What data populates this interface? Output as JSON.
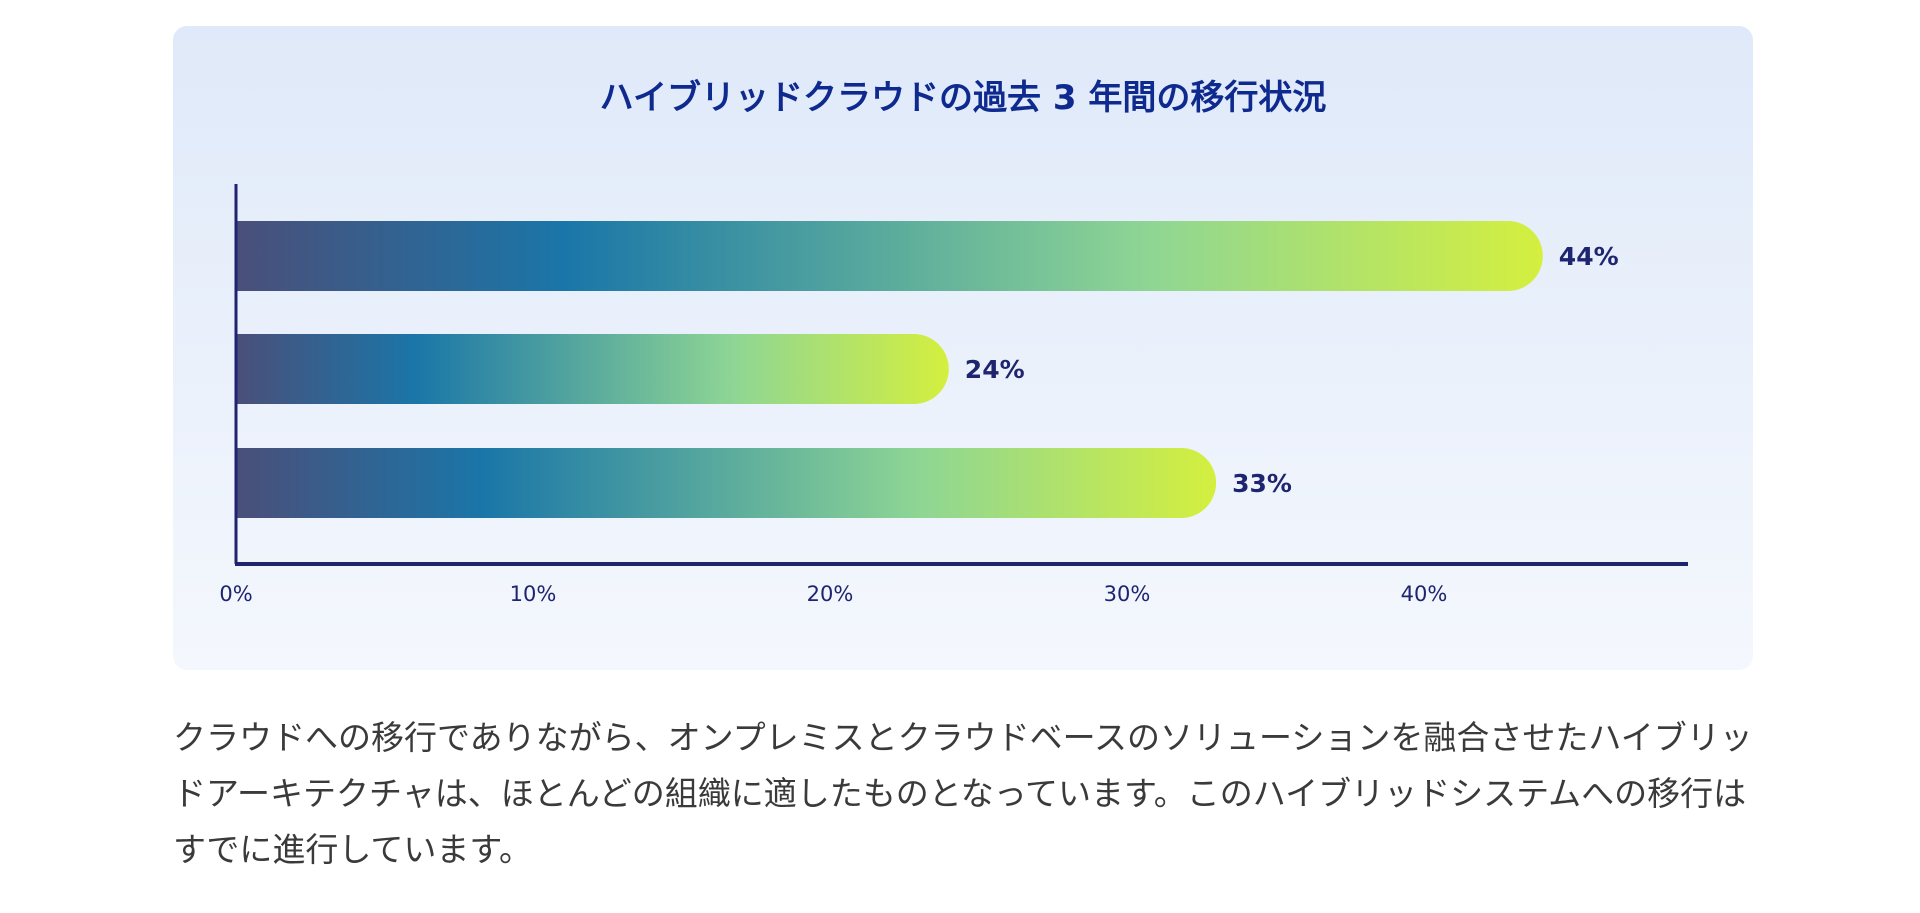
{
  "chart_data": {
    "type": "bar",
    "orientation": "horizontal",
    "title": "ハイブリッドクラウドの過去 3 年間の移行状況",
    "categories": [
      "",
      "",
      ""
    ],
    "values": [
      44,
      24,
      33
    ],
    "data_labels": [
      "44%",
      "24%",
      "33%"
    ],
    "xlim": [
      0,
      49
    ],
    "xticks": [
      0,
      10,
      20,
      30,
      40
    ],
    "xtick_labels": [
      "0%",
      "10%",
      "20%",
      "30%",
      "40%"
    ],
    "xlabel": "",
    "ylabel": "",
    "grid": false,
    "legend": "none",
    "colors": {
      "gradient_start": "#4a4f7a",
      "gradient_mid1": "#1a76a8",
      "gradient_mid2": "#8fd694",
      "gradient_end": "#d4ef3e",
      "axis": "#1f2470",
      "label": "#1f2470"
    }
  },
  "description": {
    "text": "クラウドへの移行でありながら、オンプレミスとクラウドベースのソリューションを融合させたハイブリッドアーキテクチャは、ほとんどの組織に適したものとなっています。このハイブリッドシステムへの移行はすでに進行しています。"
  }
}
